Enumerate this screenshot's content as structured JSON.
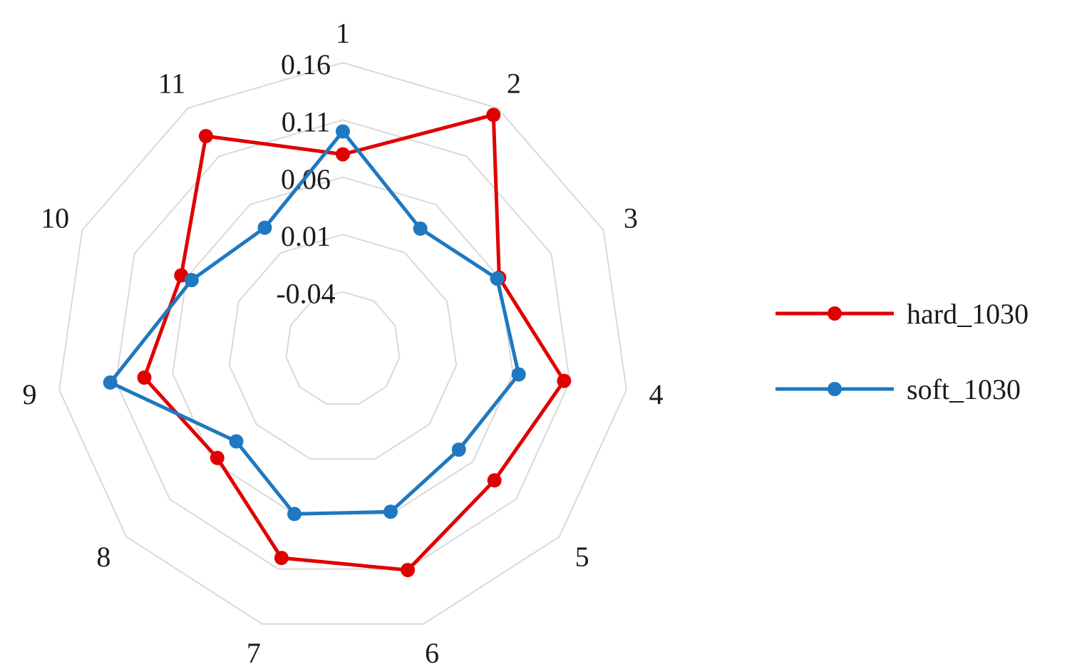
{
  "chart_data": {
    "type": "radar",
    "categories": [
      "1",
      "2",
      "3",
      "4",
      "5",
      "6",
      "7",
      "8",
      "9",
      "10",
      "11"
    ],
    "rlim": [
      -0.09,
      0.16
    ],
    "tick_values": [
      -0.04,
      0.01,
      0.06,
      0.11,
      0.16
    ],
    "tick_labels": [
      "-0.04",
      "0.01",
      "0.06",
      "0.11",
      "0.16"
    ],
    "grid": true,
    "legend_position": "right",
    "series": [
      {
        "name": "hard_1030",
        "color": "#e00000",
        "values": [
          0.08,
          0.153,
          0.06,
          0.105,
          0.085,
          0.111,
          0.1,
          0.055,
          0.085,
          0.065,
          0.131
        ]
      },
      {
        "name": "soft_1030",
        "color": "#1f78c1",
        "values": [
          0.1,
          0.035,
          0.058,
          0.065,
          0.044,
          0.058,
          0.06,
          0.033,
          0.115,
          0.055,
          0.036
        ]
      }
    ]
  }
}
